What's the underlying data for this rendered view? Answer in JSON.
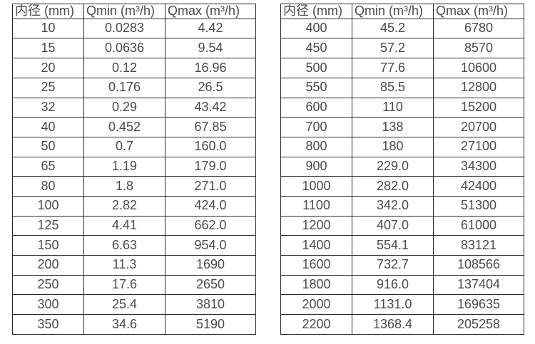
{
  "colors": {
    "background": "#ffffff",
    "text": "#4a4a4a",
    "border": "#2a2a2a"
  },
  "chart_data": [
    {
      "type": "table",
      "name": "flow-range-table-left",
      "columns": [
        "内径 (mm)",
        "Qmin (m³/h)",
        "Qmax (m³/h)"
      ],
      "rows": [
        [
          "10",
          "0.0283",
          "4.42"
        ],
        [
          "15",
          "0.0636",
          "9.54"
        ],
        [
          "20",
          "0.12",
          "16.96"
        ],
        [
          "25",
          "0.176",
          "26.5"
        ],
        [
          "32",
          "0.29",
          "43.42"
        ],
        [
          "40",
          "0.452",
          "67.85"
        ],
        [
          "50",
          "0.7",
          "160.0"
        ],
        [
          "65",
          "1.19",
          "179.0"
        ],
        [
          "80",
          "1.8",
          "271.0"
        ],
        [
          "100",
          "2.82",
          "424.0"
        ],
        [
          "125",
          "4.41",
          "662.0"
        ],
        [
          "150",
          "6.63",
          "954.0"
        ],
        [
          "200",
          "11.3",
          "1690"
        ],
        [
          "250",
          "17.6",
          "2650"
        ],
        [
          "300",
          "25.4",
          "3810"
        ],
        [
          "350",
          "34.6",
          "5190"
        ]
      ]
    },
    {
      "type": "table",
      "name": "flow-range-table-right",
      "columns": [
        "内径 (mm)",
        "Qmin (m³/h)",
        "Qmax (m³/h)"
      ],
      "rows": [
        [
          "400",
          "45.2",
          "6780"
        ],
        [
          "450",
          "57.2",
          "8570"
        ],
        [
          "500",
          "77.6",
          "10600"
        ],
        [
          "550",
          "85.5",
          "12800"
        ],
        [
          "600",
          "110",
          "15200"
        ],
        [
          "700",
          "138",
          "20700"
        ],
        [
          "800",
          "180",
          "27100"
        ],
        [
          "900",
          "229.0",
          "34300"
        ],
        [
          "1000",
          "282.0",
          "42400"
        ],
        [
          "1100",
          "342.0",
          "51300"
        ],
        [
          "1200",
          "407.0",
          "61000"
        ],
        [
          "1400",
          "554.1",
          "83121"
        ],
        [
          "1600",
          "732.7",
          "108566"
        ],
        [
          "1800",
          "916.0",
          "137404"
        ],
        [
          "2000",
          "1131.0",
          "169635"
        ],
        [
          "2200",
          "1368.4",
          "205258"
        ]
      ]
    }
  ]
}
